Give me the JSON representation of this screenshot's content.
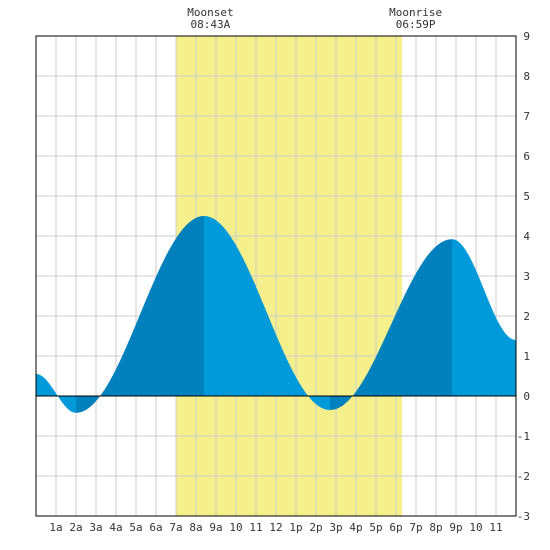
{
  "chart_data": {
    "type": "area",
    "title": "",
    "xlabel": "",
    "ylabel": "",
    "xlim": [
      0,
      24
    ],
    "ylim": [
      -3,
      9
    ],
    "grid": true,
    "x_tick_labels": [
      {
        "hour": 1,
        "label": "1a"
      },
      {
        "hour": 2,
        "label": "2a"
      },
      {
        "hour": 3,
        "label": "3a"
      },
      {
        "hour": 4,
        "label": "4a"
      },
      {
        "hour": 5,
        "label": "5a"
      },
      {
        "hour": 6,
        "label": "6a"
      },
      {
        "hour": 7,
        "label": "7a"
      },
      {
        "hour": 8,
        "label": "8a"
      },
      {
        "hour": 9,
        "label": "9a"
      },
      {
        "hour": 10,
        "label": "10"
      },
      {
        "hour": 11,
        "label": "11"
      },
      {
        "hour": 12,
        "label": "12"
      },
      {
        "hour": 13,
        "label": "1p"
      },
      {
        "hour": 14,
        "label": "2p"
      },
      {
        "hour": 15,
        "label": "3p"
      },
      {
        "hour": 16,
        "label": "4p"
      },
      {
        "hour": 17,
        "label": "5p"
      },
      {
        "hour": 18,
        "label": "6p"
      },
      {
        "hour": 19,
        "label": "7p"
      },
      {
        "hour": 20,
        "label": "8p"
      },
      {
        "hour": 21,
        "label": "9p"
      },
      {
        "hour": 22,
        "label": "10"
      },
      {
        "hour": 23,
        "label": "11"
      }
    ],
    "y_ticks": [
      -3,
      -2,
      -1,
      0,
      1,
      2,
      3,
      4,
      5,
      6,
      7,
      8,
      9
    ],
    "moon_events": [
      {
        "event": "Moonset",
        "time": "08:43A",
        "hour": 8.72
      },
      {
        "event": "Moonrise",
        "time": "06:59P",
        "hour": 18.98
      }
    ],
    "moon_band": [
      7.0,
      18.3
    ],
    "tide_extremes": [
      {
        "hour": 0.0,
        "height": 0.55
      },
      {
        "hour": 2.0,
        "height": -0.42
      },
      {
        "hour": 8.4,
        "height": 4.5
      },
      {
        "hour": 14.7,
        "height": -0.35
      },
      {
        "hour": 20.8,
        "height": 3.92
      },
      {
        "hour": 24.0,
        "height": 1.4
      }
    ],
    "phase_breaks": [
      2.0,
      8.4,
      14.7,
      20.8
    ],
    "colors": {
      "rising": "#0080bd",
      "falling": "#009ada",
      "moon_band": "#f5ef8c",
      "grid": "#cccccc",
      "axis": "#000000"
    }
  }
}
